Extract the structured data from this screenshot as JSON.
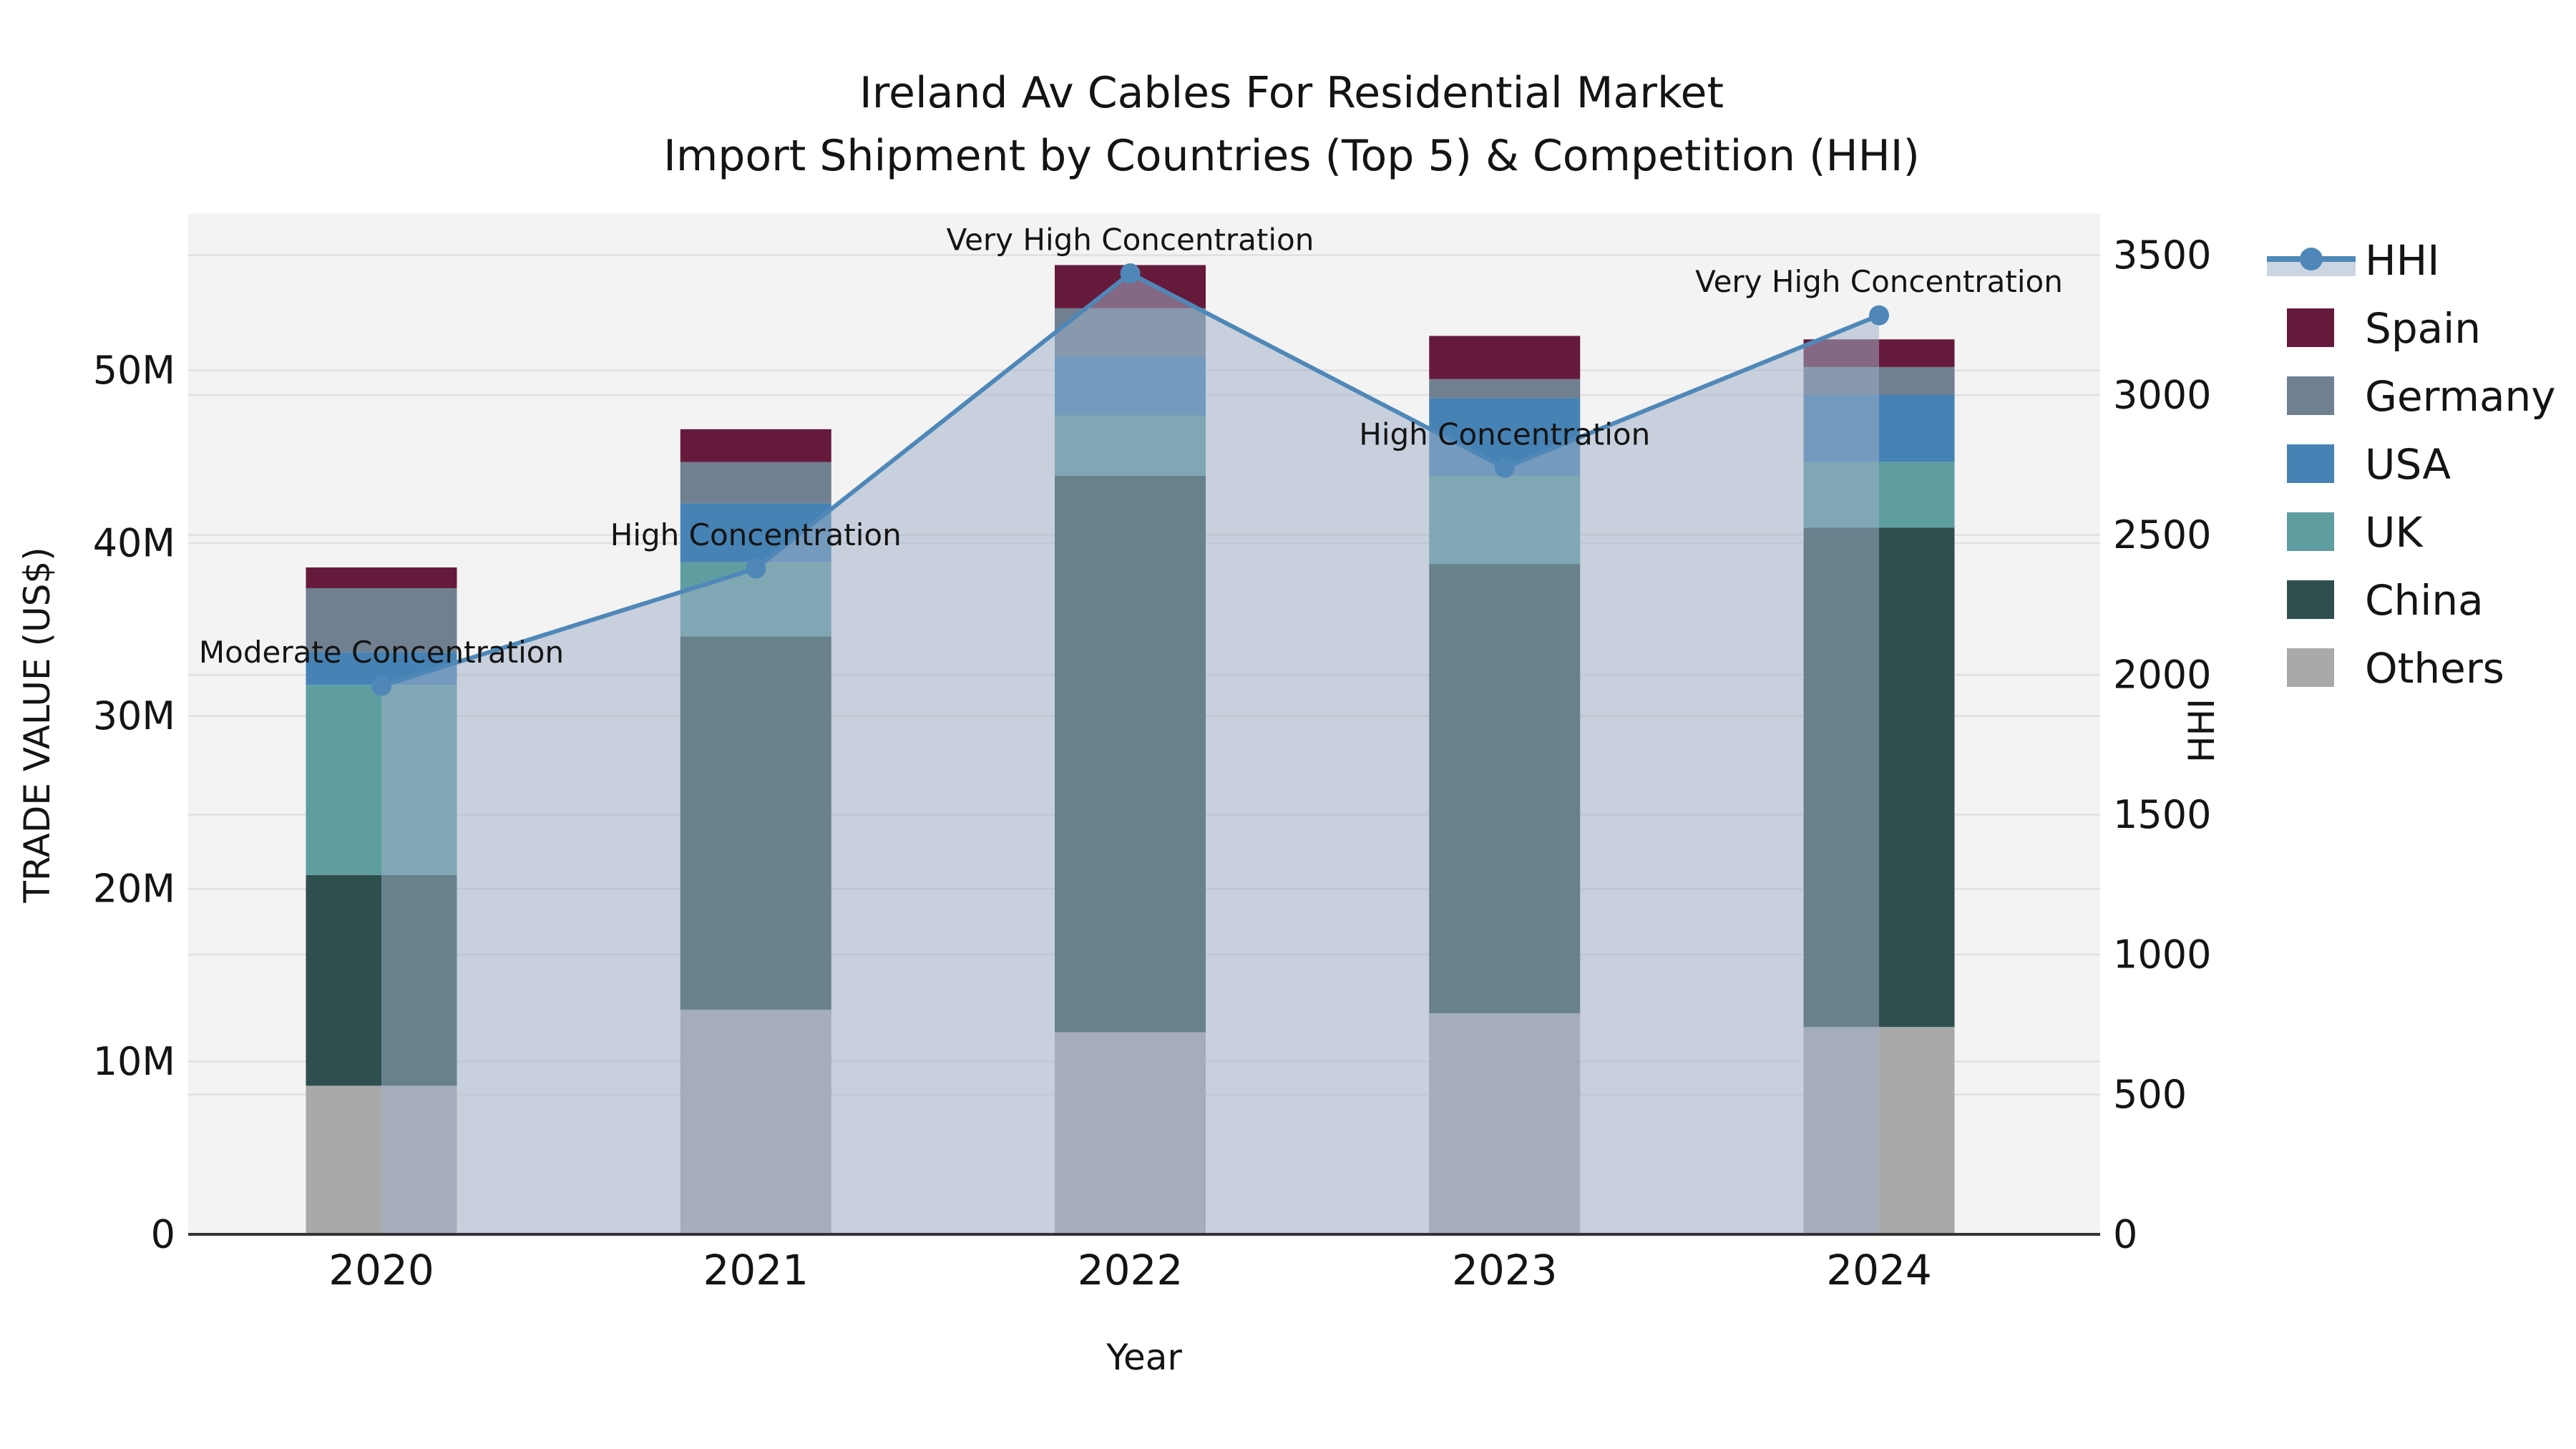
{
  "title": {
    "line1": "Ireland Av Cables For Residential Market",
    "line2": "Import Shipment by Countries (Top 5) & Competition (HHI)"
  },
  "axes": {
    "x_label": "Year",
    "y_left_label": "TRADE VALUE (US$)",
    "y_right_label": "HHI"
  },
  "colors": {
    "hhi_line": "#4f88b8",
    "hhi_legend_band": "#ccd5e2",
    "area_fill": "rgba(159,176,200,0.52)",
    "spain": "#661a3b",
    "germany": "#708090",
    "usa": "#4682b4",
    "uk": "#5f9ea0",
    "china": "#2f4f4f",
    "others": "#a9a9a9",
    "plot_bg": "#f3f3f3",
    "grid": "#e0e0e0",
    "axis_line": "#333333"
  },
  "legend": {
    "items": [
      {
        "label": "HHI",
        "type": "line",
        "color_key": "hhi_line"
      },
      {
        "label": "Spain",
        "type": "patch",
        "color_key": "spain"
      },
      {
        "label": "Germany",
        "type": "patch",
        "color_key": "germany"
      },
      {
        "label": "USA",
        "type": "patch",
        "color_key": "usa"
      },
      {
        "label": "UK",
        "type": "patch",
        "color_key": "uk"
      },
      {
        "label": "China",
        "type": "patch",
        "color_key": "china"
      },
      {
        "label": "Others",
        "type": "patch",
        "color_key": "others"
      }
    ]
  },
  "chart_data": {
    "type": "combo_stacked_bar_plus_line",
    "title": "Ireland Av Cables For Residential Market — Import Shipment by Countries (Top 5) & Competition (HHI)",
    "xlabel": "Year",
    "ylabel_left": "TRADE VALUE (US$)",
    "ylabel_right": "HHI",
    "categories": [
      "2020",
      "2021",
      "2022",
      "2023",
      "2024"
    ],
    "unit_left": "million US$",
    "ylim_left": [
      0,
      59.1
    ],
    "ylim_right": [
      0,
      3650
    ],
    "grid": true,
    "legend_position": "right-outside",
    "left_ticks": [
      {
        "v": 0,
        "label": "0"
      },
      {
        "v": 10,
        "label": "10M"
      },
      {
        "v": 20,
        "label": "20M"
      },
      {
        "v": 30,
        "label": "30M"
      },
      {
        "v": 40,
        "label": "40M"
      },
      {
        "v": 50,
        "label": "50M"
      }
    ],
    "right_ticks": [
      {
        "v": 0,
        "label": "0"
      },
      {
        "v": 500,
        "label": "500"
      },
      {
        "v": 1000,
        "label": "1000"
      },
      {
        "v": 1500,
        "label": "1500"
      },
      {
        "v": 2000,
        "label": "2000"
      },
      {
        "v": 2500,
        "label": "2500"
      },
      {
        "v": 3000,
        "label": "3000"
      },
      {
        "v": 3500,
        "label": "3500"
      }
    ],
    "series": [
      {
        "name": "Others",
        "color_key": "others",
        "values": [
          8.6,
          13.0,
          11.7,
          12.8,
          12.0
        ]
      },
      {
        "name": "China",
        "color_key": "china",
        "values": [
          12.2,
          21.6,
          32.2,
          26.0,
          28.9
        ]
      },
      {
        "name": "UK",
        "color_key": "uk",
        "values": [
          11.0,
          4.3,
          3.5,
          5.1,
          3.8
        ]
      },
      {
        "name": "USA",
        "color_key": "usa",
        "values": [
          1.9,
          3.4,
          3.4,
          4.5,
          3.9
        ]
      },
      {
        "name": "Germany",
        "color_key": "germany",
        "values": [
          3.7,
          2.4,
          2.8,
          1.1,
          1.6
        ]
      },
      {
        "name": "Spain",
        "color_key": "spain",
        "values": [
          1.2,
          1.9,
          2.5,
          2.5,
          1.6
        ]
      }
    ],
    "totals": [
      38.6,
      46.6,
      56.1,
      52.0,
      51.8
    ],
    "hhi": {
      "name": "HHI",
      "values": [
        1960,
        2380,
        3435,
        2740,
        3285
      ],
      "annotations": [
        "Moderate Concentration",
        "High Concentration",
        "Very High Concentration",
        "High Concentration",
        "Very High Concentration"
      ]
    }
  }
}
